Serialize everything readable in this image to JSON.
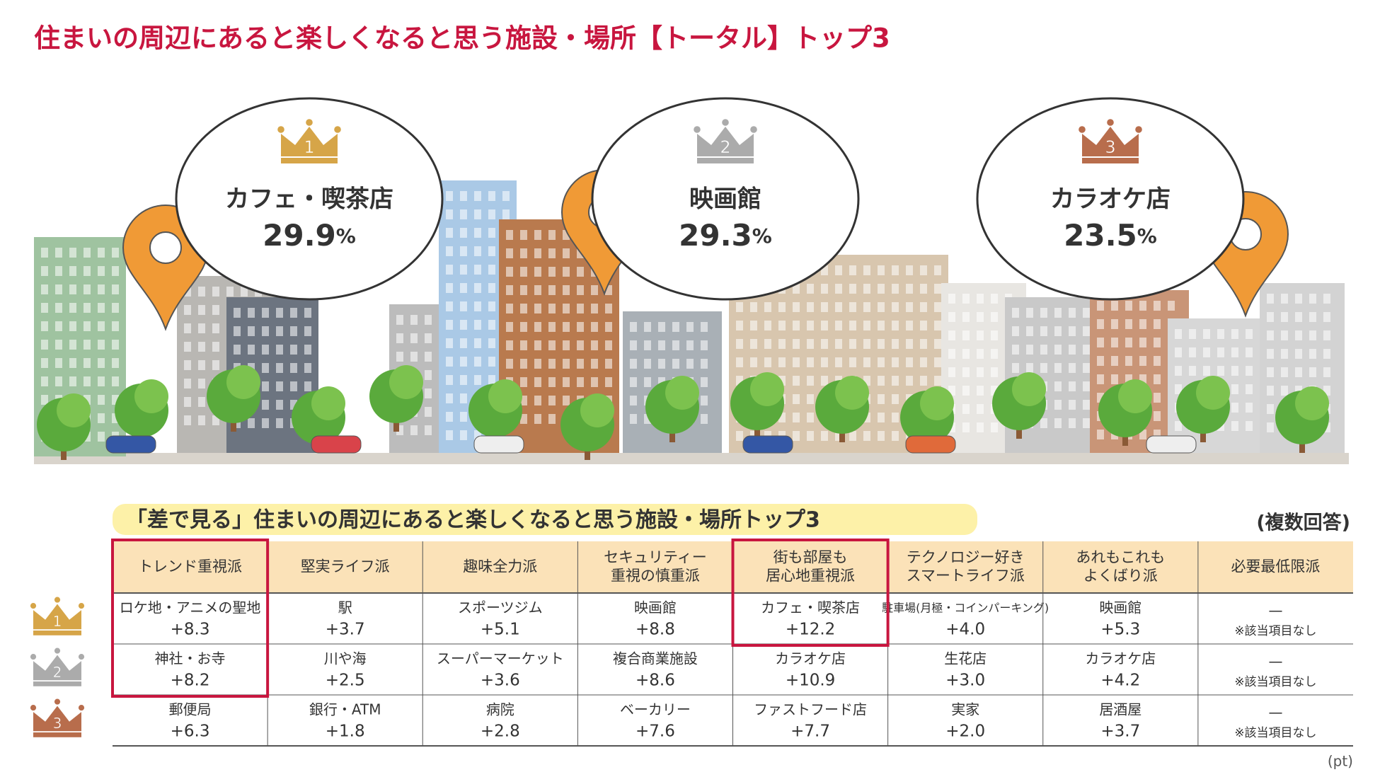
{
  "title": "住まいの周辺にあると楽しくなると思う施設・場所【トータル】トップ3",
  "top3": [
    {
      "rank": "1",
      "name": "カフェ・喫茶店",
      "value": "29.9",
      "unit": "%"
    },
    {
      "rank": "2",
      "name": "映画館",
      "value": "29.3",
      "unit": "%"
    },
    {
      "rank": "3",
      "name": "カラオケ店",
      "value": "23.5",
      "unit": "%"
    }
  ],
  "table": {
    "subtitle": "「差で見る」住まいの周辺にあると楽しくなると思う施設・場所トップ3",
    "note": "(複数回答)",
    "unit": "(pt)",
    "ranks": [
      "1",
      "2",
      "3"
    ],
    "columns": [
      [
        "トレンド重視派"
      ],
      [
        "堅実ライフ派"
      ],
      [
        "趣味全力派"
      ],
      [
        "セキュリティー",
        "重視の慎重派"
      ],
      [
        "街も部屋も",
        "居心地重視派"
      ],
      [
        "テクノロジー好き",
        "スマートライフ派"
      ],
      [
        "あれもこれも",
        "よくばり派"
      ],
      [
        "必要最低限派"
      ]
    ],
    "rows": [
      [
        {
          "item": "ロケ地・アニメの聖地",
          "diff": "+8.3"
        },
        {
          "item": "駅",
          "diff": "+3.7"
        },
        {
          "item": "スポーツジム",
          "diff": "+5.1"
        },
        {
          "item": "映画館",
          "diff": "+8.8"
        },
        {
          "item": "カフェ・喫茶店",
          "diff": "+12.2"
        },
        {
          "item": "駐車場(月極・コインパーキング)",
          "diff": "+4.0"
        },
        {
          "item": "映画館",
          "diff": "+5.3"
        },
        {
          "item": "—",
          "diff": "※該当項目なし"
        }
      ],
      [
        {
          "item": "神社・お寺",
          "diff": "+8.2"
        },
        {
          "item": "川や海",
          "diff": "+2.5"
        },
        {
          "item": "スーパーマーケット",
          "diff": "+3.6"
        },
        {
          "item": "複合商業施設",
          "diff": "+8.6"
        },
        {
          "item": "カラオケ店",
          "diff": "+10.9"
        },
        {
          "item": "生花店",
          "diff": "+3.0"
        },
        {
          "item": "カラオケ店",
          "diff": "+4.2"
        },
        {
          "item": "—",
          "diff": "※該当項目なし"
        }
      ],
      [
        {
          "item": "郵便局",
          "diff": "+6.3"
        },
        {
          "item": "銀行・ATM",
          "diff": "+1.8"
        },
        {
          "item": "病院",
          "diff": "+2.8"
        },
        {
          "item": "ベーカリー",
          "diff": "+7.6"
        },
        {
          "item": "ファストフード店",
          "diff": "+7.7"
        },
        {
          "item": "実家",
          "diff": "+2.0"
        },
        {
          "item": "居酒屋",
          "diff": "+3.7"
        },
        {
          "item": "—",
          "diff": "※該当項目なし"
        }
      ]
    ]
  }
}
